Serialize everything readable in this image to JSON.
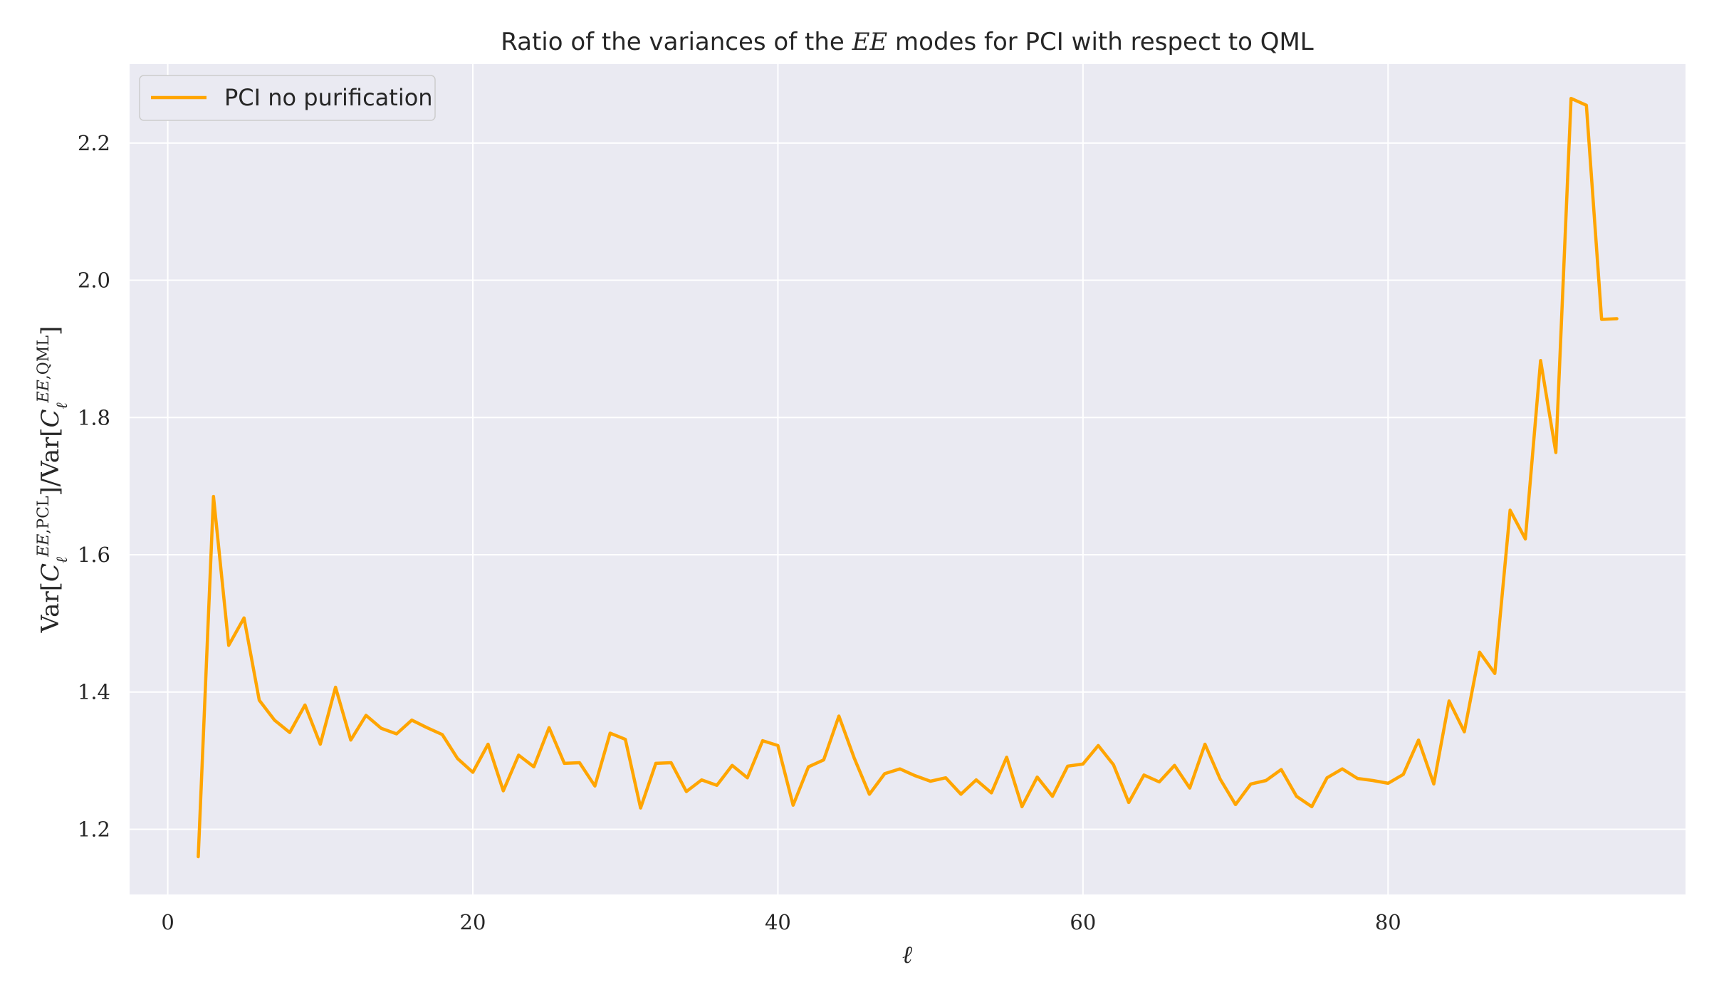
{
  "chart_data": {
    "type": "line",
    "title": "Ratio of the variances of the EE modes for PCI with respect to QML",
    "xlabel": "ℓ",
    "ylabel": "Var[Cℓ^{EE,PCL}]/Var[Cℓ^{EE,QML}]",
    "xlim": [
      -2.5,
      99.5
    ],
    "ylim": [
      1.105,
      2.315
    ],
    "xticks": [
      0,
      20,
      40,
      60,
      80
    ],
    "yticks": [
      1.2,
      1.4,
      1.6,
      1.8,
      2.0,
      2.2
    ],
    "xtick_labels": [
      "0",
      "20",
      "40",
      "60",
      "80"
    ],
    "ytick_labels": [
      "1.2",
      "1.4",
      "1.6",
      "1.8",
      "2.0",
      "2.2"
    ],
    "grid": true,
    "legend_position": "upper-left",
    "series": [
      {
        "name": "PCI no purification",
        "color": "#FFA500",
        "x": [
          2,
          3,
          4,
          5,
          6,
          7,
          8,
          9,
          10,
          11,
          12,
          13,
          14,
          15,
          16,
          17,
          18,
          19,
          20,
          21,
          22,
          23,
          24,
          25,
          26,
          27,
          28,
          29,
          30,
          31,
          32,
          33,
          34,
          35,
          36,
          37,
          38,
          39,
          40,
          41,
          42,
          43,
          44,
          45,
          46,
          47,
          48,
          49,
          50,
          51,
          52,
          53,
          54,
          55,
          56,
          57,
          58,
          59,
          60,
          61,
          62,
          63,
          64,
          65,
          66,
          67,
          68,
          69,
          70,
          71,
          72,
          73,
          74,
          75,
          76,
          77,
          78,
          79,
          80,
          81,
          82,
          83,
          84,
          85,
          86,
          87,
          88,
          89,
          90,
          91,
          92,
          93,
          94,
          95
        ],
        "y": [
          1.16,
          1.685,
          1.468,
          1.508,
          1.388,
          1.359,
          1.341,
          1.381,
          1.324,
          1.407,
          1.33,
          1.366,
          1.347,
          1.339,
          1.359,
          1.348,
          1.338,
          1.303,
          1.283,
          1.324,
          1.256,
          1.308,
          1.291,
          1.348,
          1.296,
          1.297,
          1.263,
          1.34,
          1.331,
          1.231,
          1.296,
          1.297,
          1.255,
          1.272,
          1.264,
          1.293,
          1.275,
          1.329,
          1.322,
          1.235,
          1.291,
          1.301,
          1.365,
          1.304,
          1.251,
          1.281,
          1.288,
          1.278,
          1.27,
          1.275,
          1.251,
          1.272,
          1.253,
          1.305,
          1.233,
          1.276,
          1.248,
          1.292,
          1.295,
          1.322,
          1.294,
          1.239,
          1.279,
          1.269,
          1.293,
          1.26,
          1.324,
          1.273,
          1.236,
          1.266,
          1.271,
          1.287,
          1.248,
          1.233,
          1.275,
          1.288,
          1.274,
          1.271,
          1.267,
          1.28,
          1.33,
          1.266,
          1.387,
          1.342,
          1.458,
          1.427,
          1.665,
          1.623,
          1.883,
          1.749,
          2.265,
          2.255,
          1.943,
          1.944
        ]
      }
    ]
  }
}
